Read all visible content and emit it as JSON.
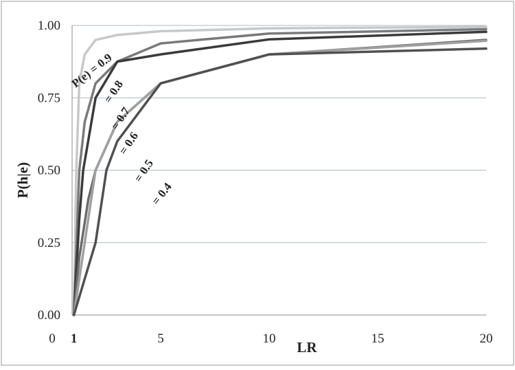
{
  "chart_data": {
    "type": "line",
    "xlabel": "LR",
    "ylabel": "P(h|e)",
    "xlim": [
      0,
      20
    ],
    "ylim": [
      0,
      1
    ],
    "x_ticks": [
      "0",
      "1",
      "5",
      "10",
      "15",
      "20"
    ],
    "y_ticks": [
      "0.00",
      "0.25",
      "0.50",
      "0.75",
      "1.00"
    ],
    "grid": "horizontal",
    "series": [
      {
        "name": "P(e) = 0.9",
        "prior": 0.9,
        "color": "#c8c8c8",
        "x": [
          1,
          1.111,
          1.25,
          1.5,
          2,
          3,
          5,
          10,
          20
        ],
        "y": [
          0,
          0.5,
          0.8,
          0.9,
          0.95,
          0.967,
          0.98,
          0.99,
          0.995
        ]
      },
      {
        "name": "= 0.8",
        "prior": 0.8,
        "color": "#7a7a7a",
        "x": [
          1,
          1.25,
          1.5,
          2,
          3,
          5,
          10,
          20
        ],
        "y": [
          0,
          0.5,
          0.667,
          0.8,
          0.875,
          0.938,
          0.972,
          0.987
        ]
      },
      {
        "name": "= 0.7",
        "prior": 0.7,
        "color": "#3a3a3a",
        "x": [
          1,
          1.25,
          1.429,
          2,
          3,
          5,
          10,
          20
        ],
        "y": [
          0,
          0.333,
          0.5,
          0.75,
          0.875,
          0.9,
          0.952,
          0.978
        ]
      },
      {
        "name": "= 0.6",
        "prior": 0.6,
        "color": "#6c6c6c",
        "x": [
          1,
          1.25,
          1.667,
          2,
          3,
          5,
          10,
          20
        ],
        "y": [
          0,
          0.2,
          0.4,
          0.5,
          0.667,
          0.8,
          0.9,
          0.95
        ]
      },
      {
        "name": "= 0.5",
        "prior": 0.5,
        "color": "#a0a0a0",
        "x": [
          1,
          1.5,
          2,
          3,
          5,
          10,
          20
        ],
        "y": [
          0,
          0.25,
          0.5,
          0.667,
          0.8,
          0.9,
          0.947
        ]
      },
      {
        "name": "= 0.4",
        "prior": 0.4,
        "color": "#505050",
        "x": [
          1,
          2,
          2.5,
          3,
          5,
          10,
          20
        ],
        "y": [
          0,
          0.25,
          0.5,
          0.6,
          0.8,
          0.9,
          0.92
        ]
      }
    ]
  }
}
